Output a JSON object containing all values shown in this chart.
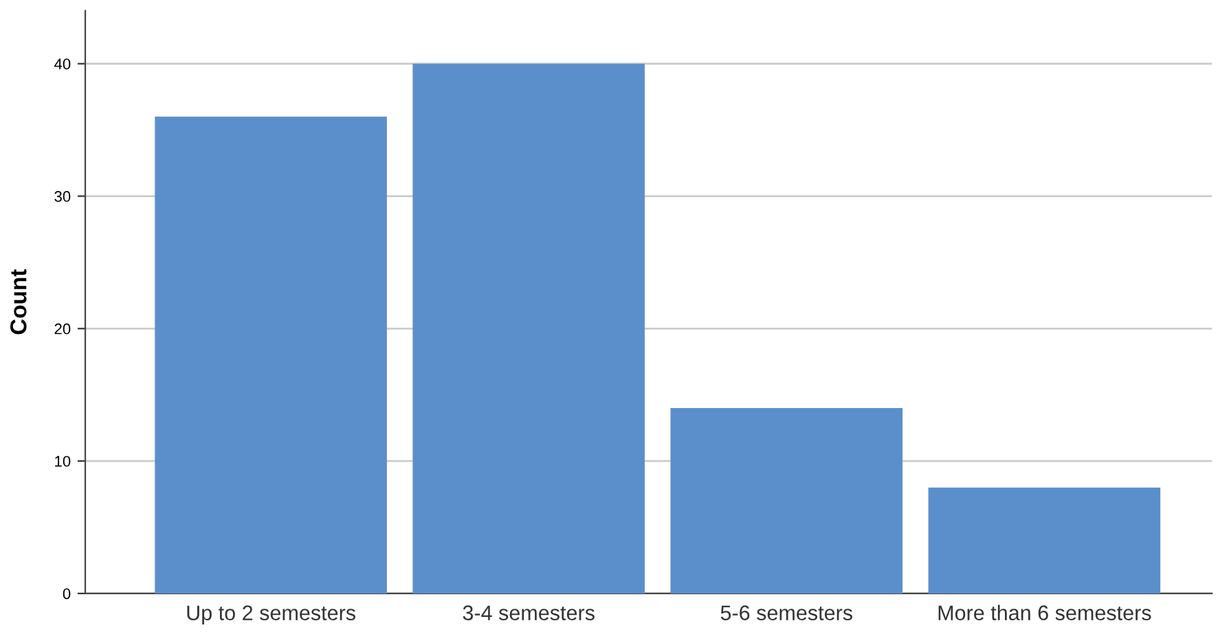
{
  "chart_data": {
    "type": "bar",
    "ylabel": "Count",
    "categories": [
      "Up to 2 semesters",
      "3-4 semesters",
      "5-6 semesters",
      "More than 6 semesters"
    ],
    "values": [
      36,
      40,
      14,
      8
    ],
    "color": "#5b8fcb",
    "ylim": [
      0,
      44
    ],
    "yticks": [
      0,
      10,
      20,
      30,
      40
    ],
    "grid": "y"
  }
}
